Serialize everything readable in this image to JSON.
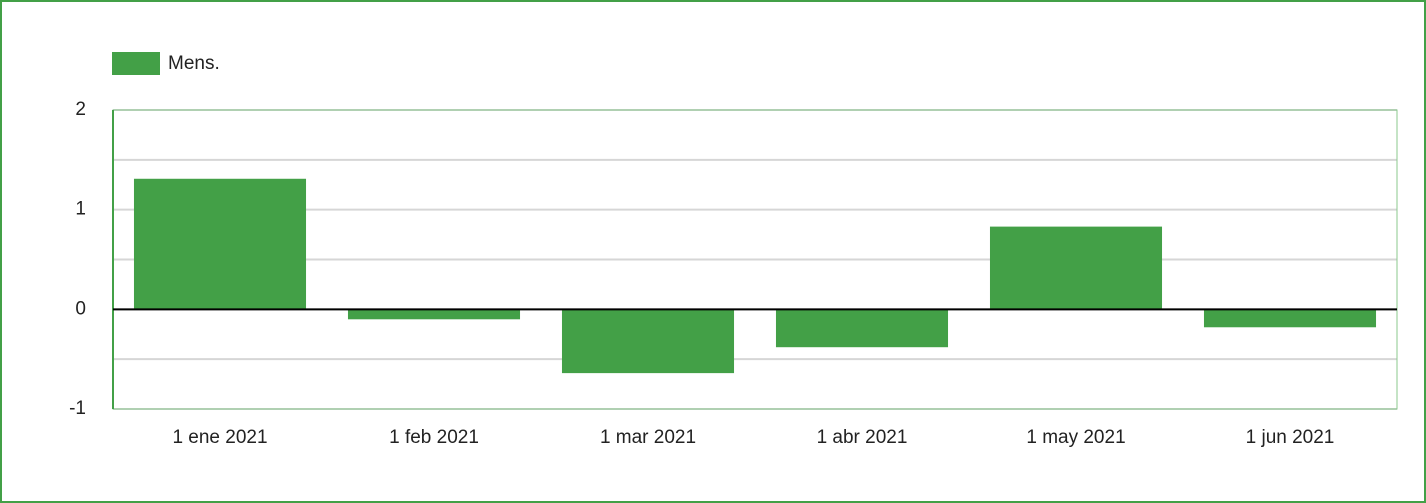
{
  "chart_data": {
    "type": "bar",
    "categories": [
      "1 ene 2021",
      "1 feb 2021",
      "1 mar 2021",
      "1 abr 2021",
      "1 may 2021",
      "1 jun 2021"
    ],
    "series": [
      {
        "name": "Mens.",
        "color": "#43a047",
        "values": [
          1.31,
          -0.1,
          -0.64,
          -0.38,
          0.83,
          -0.18
        ]
      }
    ],
    "ylim": [
      -1,
      2
    ],
    "yticks": [
      -1,
      0,
      1,
      2
    ],
    "minor_yticks": [
      -0.5,
      0.5,
      1.5
    ],
    "grid": true,
    "legend": "top-left"
  }
}
